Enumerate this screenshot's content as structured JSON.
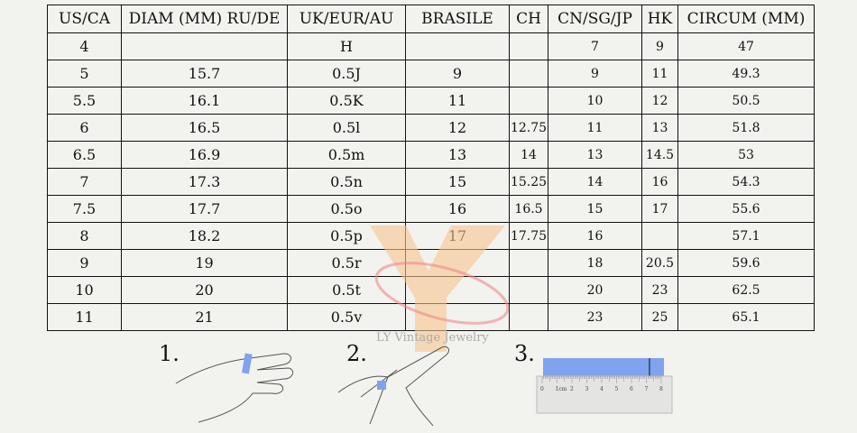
{
  "headers": [
    "US/CA",
    "DIAM (MM) RU/DE",
    "UK/EUR/AU",
    "BRASILE",
    "CH",
    "CN/SG/JP",
    "HK",
    "CIRCUM (MM)"
  ],
  "rows": [
    [
      "4",
      "",
      "H",
      "",
      "",
      "7",
      "9",
      "47"
    ],
    [
      "5",
      "15.7",
      "0.5J",
      "9",
      "",
      "9",
      "11",
      "49.3"
    ],
    [
      "5.5",
      "16.1",
      "0.5K",
      "11",
      "",
      "10",
      "12",
      "50.5"
    ],
    [
      "6",
      "16.5",
      "0.5l",
      "12",
      "12.75",
      "11",
      "13",
      "51.8"
    ],
    [
      "6.5",
      "16.9",
      "0.5m",
      "13",
      "14",
      "13",
      "14.5",
      "53"
    ],
    [
      "7",
      "17.3",
      "0.5n",
      "15",
      "15.25",
      "14",
      "16",
      "54.3"
    ],
    [
      "7.5",
      "17.7",
      "0.5o",
      "16",
      "16.5",
      "15",
      "17",
      "55.6"
    ],
    [
      "8",
      "18.2",
      "0.5p",
      "17",
      "17.75",
      "16",
      "",
      "57.1"
    ],
    [
      "9",
      "19",
      "0.5r",
      "",
      "",
      "18",
      "20.5",
      "59.6"
    ],
    [
      "10",
      "20",
      "0.5t",
      "",
      "",
      "20",
      "23",
      "62.5"
    ],
    [
      "11",
      "21",
      "0.5v",
      "",
      "",
      "23",
      "25",
      "65.1"
    ]
  ],
  "watermark": "LY Vintage Jewelry",
  "steps": [
    "1.",
    "2.",
    "3."
  ],
  "ruler": {
    "labels": [
      "0",
      "1cm",
      "2",
      "3",
      "4",
      "5",
      "6",
      "7",
      "8"
    ],
    "strip_color": "#7fa3ee"
  }
}
